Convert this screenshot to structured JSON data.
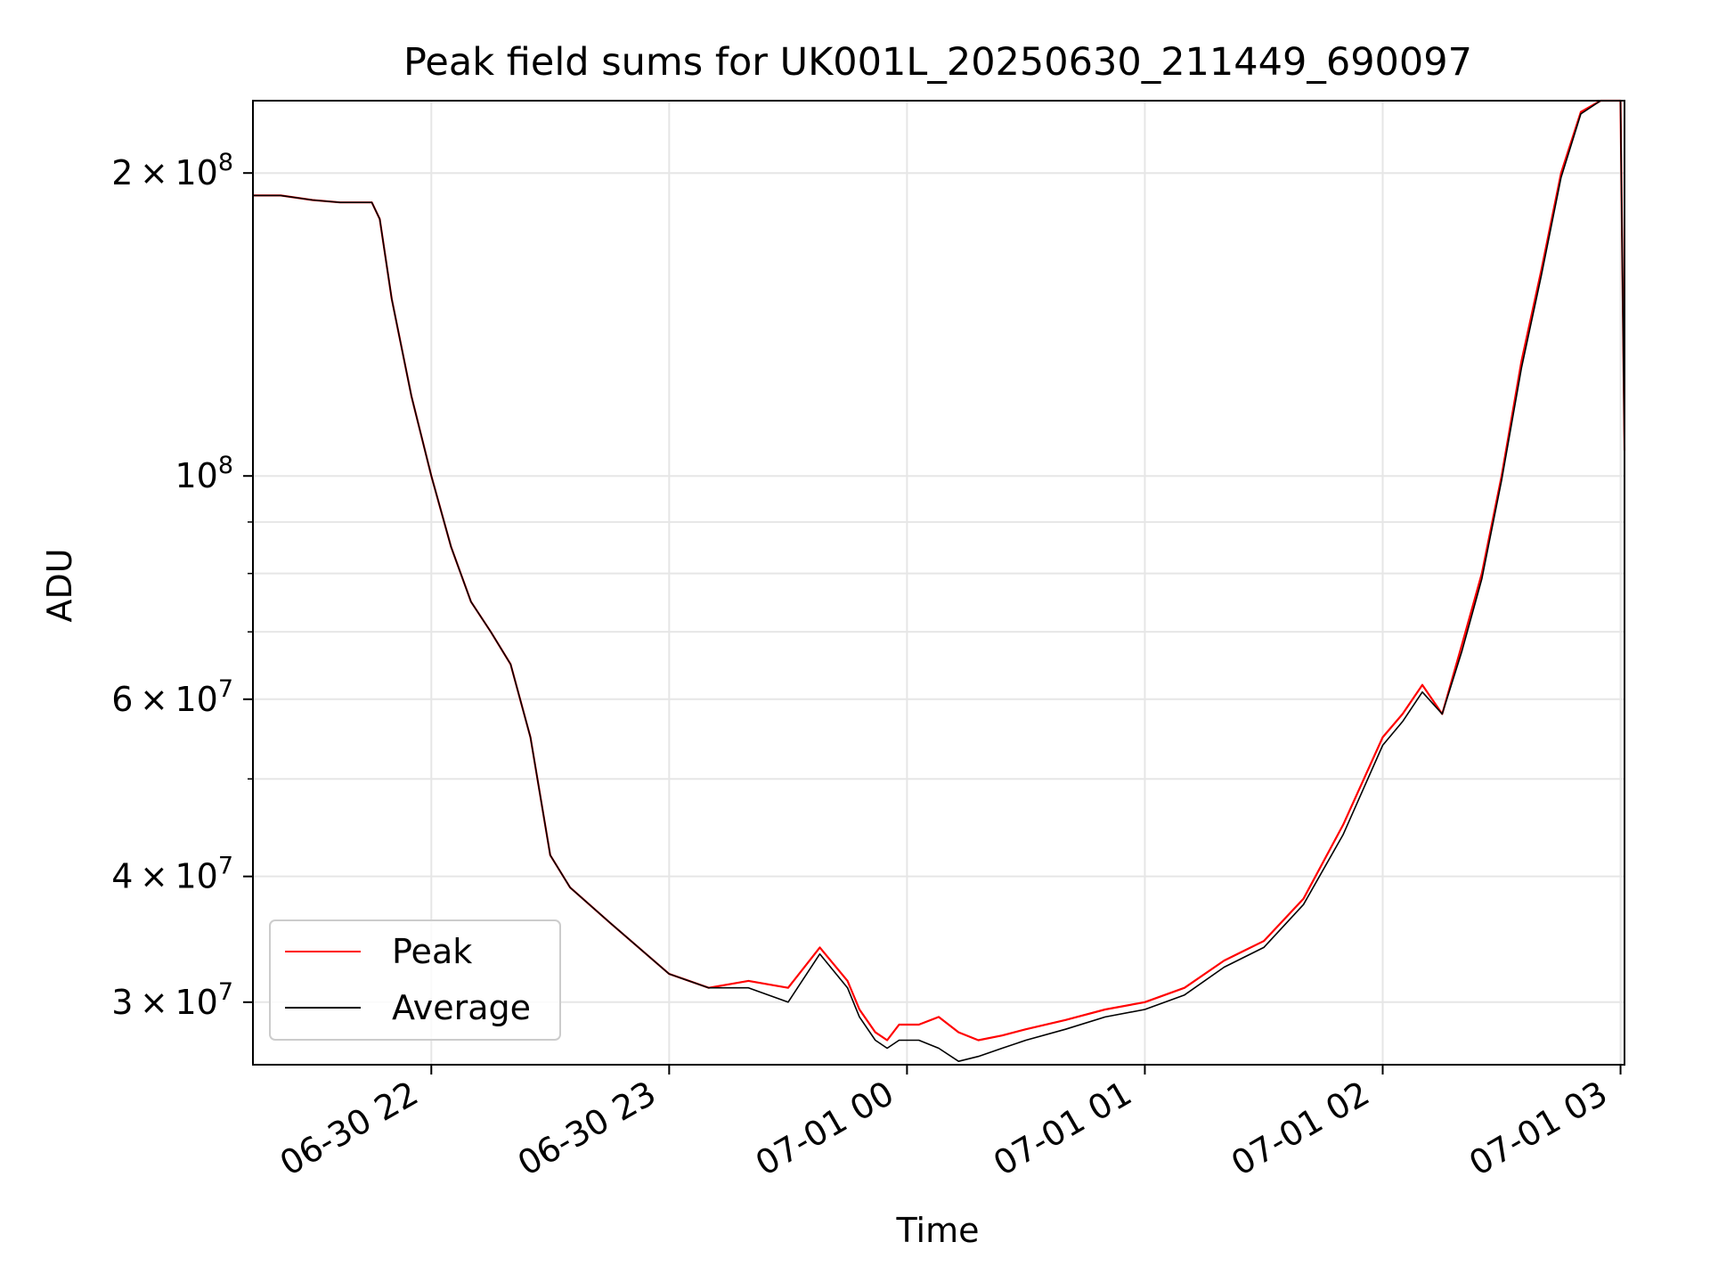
{
  "chart_data": {
    "type": "line",
    "title": "Peak field sums for UK001L_20250630_211449_690097",
    "xlabel": "Time",
    "ylabel": "ADU",
    "y_scale": "log",
    "x_range": [
      "2025-06-30 21:15",
      "2025-07-01 03:01"
    ],
    "ylim": [
      26000000,
      236000000
    ],
    "grid": true,
    "legend": "lower-left",
    "x_ticks": [
      {
        "t": "2025-06-30 22:00",
        "label": "06-30 22"
      },
      {
        "t": "2025-06-30 23:00",
        "label": "06-30 23"
      },
      {
        "t": "2025-07-01 00:00",
        "label": "07-01 00"
      },
      {
        "t": "2025-07-01 01:00",
        "label": "07-01 01"
      },
      {
        "t": "2025-07-01 02:00",
        "label": "07-01 02"
      },
      {
        "t": "2025-07-01 03:00",
        "label": "07-01 03"
      }
    ],
    "y_major_ticks": [
      {
        "value": 30000000,
        "mant": "3",
        "exp": "7"
      },
      {
        "value": 40000000,
        "mant": "4",
        "exp": "7"
      },
      {
        "value": 60000000,
        "mant": "6",
        "exp": "7"
      },
      {
        "value": 100000000,
        "mant": "",
        "exp": "8"
      },
      {
        "value": 200000000,
        "mant": "2",
        "exp": "8"
      }
    ],
    "y_minor_values": [
      50000000,
      70000000,
      80000000,
      90000000
    ],
    "series": [
      {
        "name": "Peak",
        "color": "#ff0000",
        "x": [
          "2025-06-30 21:15",
          "2025-06-30 21:22",
          "2025-06-30 21:30",
          "2025-06-30 21:37",
          "2025-06-30 21:45",
          "2025-06-30 21:47",
          "2025-06-30 21:50",
          "2025-06-30 21:55",
          "2025-06-30 22:00",
          "2025-06-30 22:05",
          "2025-06-30 22:10",
          "2025-06-30 22:15",
          "2025-06-30 22:20",
          "2025-06-30 22:25",
          "2025-06-30 22:30",
          "2025-06-30 22:35",
          "2025-06-30 22:45",
          "2025-06-30 23:00",
          "2025-06-30 23:10",
          "2025-06-30 23:20",
          "2025-06-30 23:30",
          "2025-06-30 23:38",
          "2025-06-30 23:45",
          "2025-06-30 23:48",
          "2025-06-30 23:52",
          "2025-06-30 23:55",
          "2025-06-30 23:58",
          "2025-07-01 00:03",
          "2025-07-01 00:08",
          "2025-07-01 00:13",
          "2025-07-01 00:18",
          "2025-07-01 00:24",
          "2025-07-01 00:30",
          "2025-07-01 00:40",
          "2025-07-01 00:50",
          "2025-07-01 01:00",
          "2025-07-01 01:10",
          "2025-07-01 01:20",
          "2025-07-01 01:30",
          "2025-07-01 01:40",
          "2025-07-01 01:50",
          "2025-07-01 02:00",
          "2025-07-01 02:05",
          "2025-07-01 02:10",
          "2025-07-01 02:15",
          "2025-07-01 02:20",
          "2025-07-01 02:25",
          "2025-07-01 02:30",
          "2025-07-01 02:35",
          "2025-07-01 02:40",
          "2025-07-01 02:45",
          "2025-07-01 02:50",
          "2025-07-01 02:55",
          "2025-07-01 03:00",
          "2025-07-01 03:01"
        ],
        "y": [
          190000000,
          190000000,
          188000000,
          187000000,
          187000000,
          180000000,
          150000000,
          120000000,
          100000000,
          85000000,
          75000000,
          70000000,
          65000000,
          55000000,
          42000000,
          39000000,
          36000000,
          32000000,
          31000000,
          31500000,
          31000000,
          34000000,
          31500000,
          29500000,
          28000000,
          27500000,
          28500000,
          28500000,
          29000000,
          28000000,
          27500000,
          27800000,
          28200000,
          28800000,
          29500000,
          30000000,
          31000000,
          33000000,
          34500000,
          38000000,
          45000000,
          55000000,
          58000000,
          62000000,
          58000000,
          68000000,
          80000000,
          100000000,
          130000000,
          160000000,
          200000000,
          230000000,
          236000000,
          236000000,
          106000000
        ]
      },
      {
        "name": "Average",
        "color": "#000000",
        "x": [
          "2025-06-30 21:15",
          "2025-06-30 21:22",
          "2025-06-30 21:30",
          "2025-06-30 21:37",
          "2025-06-30 21:45",
          "2025-06-30 21:47",
          "2025-06-30 21:50",
          "2025-06-30 21:55",
          "2025-06-30 22:00",
          "2025-06-30 22:05",
          "2025-06-30 22:10",
          "2025-06-30 22:15",
          "2025-06-30 22:20",
          "2025-06-30 22:25",
          "2025-06-30 22:30",
          "2025-06-30 22:35",
          "2025-06-30 22:45",
          "2025-06-30 23:00",
          "2025-06-30 23:10",
          "2025-06-30 23:20",
          "2025-06-30 23:30",
          "2025-06-30 23:38",
          "2025-06-30 23:45",
          "2025-06-30 23:48",
          "2025-06-30 23:52",
          "2025-06-30 23:55",
          "2025-06-30 23:58",
          "2025-07-01 00:03",
          "2025-07-01 00:08",
          "2025-07-01 00:13",
          "2025-07-01 00:18",
          "2025-07-01 00:24",
          "2025-07-01 00:30",
          "2025-07-01 00:40",
          "2025-07-01 00:50",
          "2025-07-01 01:00",
          "2025-07-01 01:10",
          "2025-07-01 01:20",
          "2025-07-01 01:30",
          "2025-07-01 01:40",
          "2025-07-01 01:50",
          "2025-07-01 02:00",
          "2025-07-01 02:05",
          "2025-07-01 02:10",
          "2025-07-01 02:15",
          "2025-07-01 02:20",
          "2025-07-01 02:25",
          "2025-07-01 02:30",
          "2025-07-01 02:35",
          "2025-07-01 02:40",
          "2025-07-01 02:45",
          "2025-07-01 02:50",
          "2025-07-01 02:55",
          "2025-07-01 03:00",
          "2025-07-01 03:01"
        ],
        "y": [
          190000000,
          190000000,
          188000000,
          187000000,
          187000000,
          180000000,
          150000000,
          120000000,
          100000000,
          85000000,
          75000000,
          70000000,
          65000000,
          55000000,
          42000000,
          39000000,
          36000000,
          32000000,
          31000000,
          31000000,
          30000000,
          33500000,
          31000000,
          29000000,
          27500000,
          27000000,
          27500000,
          27500000,
          27000000,
          26200000,
          26500000,
          27000000,
          27500000,
          28200000,
          29000000,
          29500000,
          30500000,
          32500000,
          34000000,
          37500000,
          44000000,
          54000000,
          57000000,
          61000000,
          58000000,
          67000000,
          79000000,
          99000000,
          128000000,
          158000000,
          198000000,
          229000000,
          236000000,
          236000000,
          105000000
        ]
      }
    ]
  }
}
